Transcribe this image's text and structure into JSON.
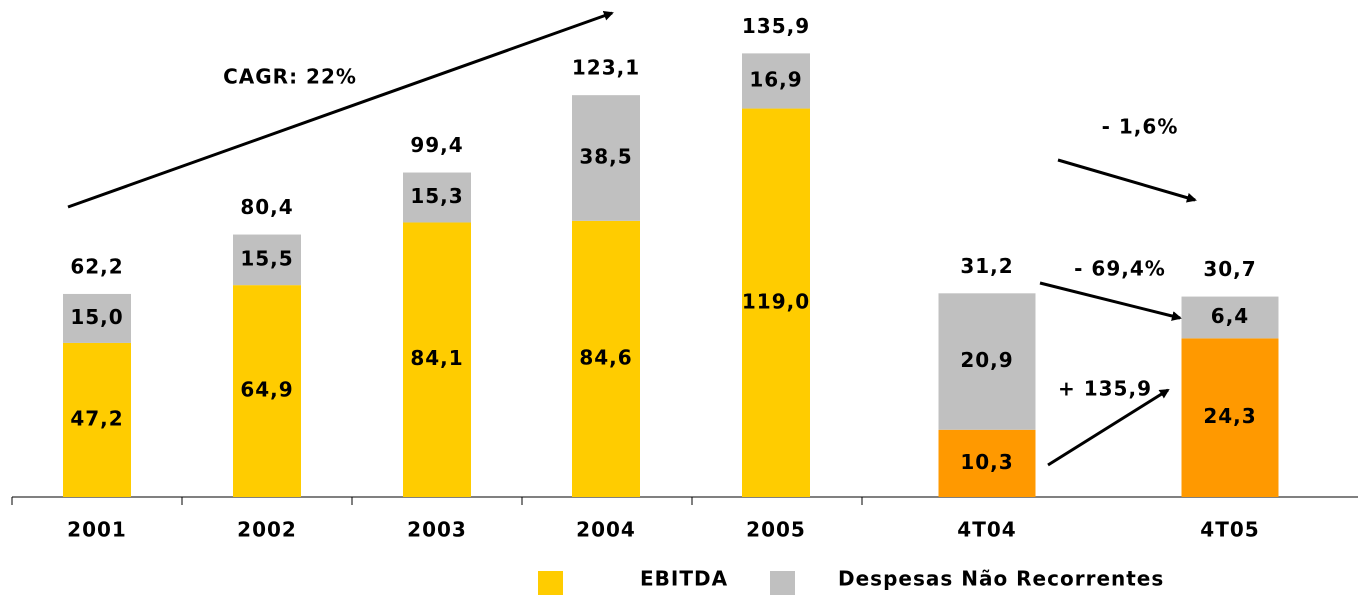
{
  "chart_data": [
    {
      "type": "bar",
      "stacked": true,
      "annotations": [
        "CAGR: 22%"
      ],
      "categories": [
        "2001",
        "2002",
        "2003",
        "2004",
        "2005"
      ],
      "series": [
        {
          "name": "EBITDA",
          "color": "#FFCC00",
          "values": [
            47.2,
            64.9,
            84.1,
            84.6,
            119.0
          ],
          "value_labels": [
            "47,2",
            "64,9",
            "84,1",
            "84,6",
            "119,0"
          ]
        },
        {
          "name": "Despesas Não Recorrentes",
          "color": "#C0C0C0",
          "values": [
            15.0,
            15.5,
            15.3,
            38.5,
            16.9
          ],
          "value_labels": [
            "15,0",
            "15,5",
            "15,3",
            "38,5",
            "16,9"
          ]
        }
      ],
      "totals": [
        62.2,
        80.4,
        99.4,
        123.1,
        135.9
      ],
      "total_labels": [
        "62,2",
        "80,4",
        "99,4",
        "123,1",
        "135,9"
      ],
      "ylim": [
        0,
        140
      ]
    },
    {
      "type": "bar",
      "stacked": true,
      "annotations": [
        "- 1,6%",
        "- 69,4%",
        "+ 135,9"
      ],
      "categories": [
        "4T04",
        "4T05"
      ],
      "series": [
        {
          "color": "#FF9900",
          "values": [
            10.3,
            24.3
          ],
          "value_labels": [
            "10,3",
            "24,3"
          ]
        },
        {
          "color": "#C0C0C0",
          "values": [
            20.9,
            6.4
          ],
          "value_labels": [
            "20,9",
            "6,4"
          ]
        }
      ],
      "totals": [
        31.2,
        30.7
      ],
      "total_labels": [
        "31,2",
        "30,7"
      ],
      "ylim": [
        0,
        70
      ]
    }
  ]
}
